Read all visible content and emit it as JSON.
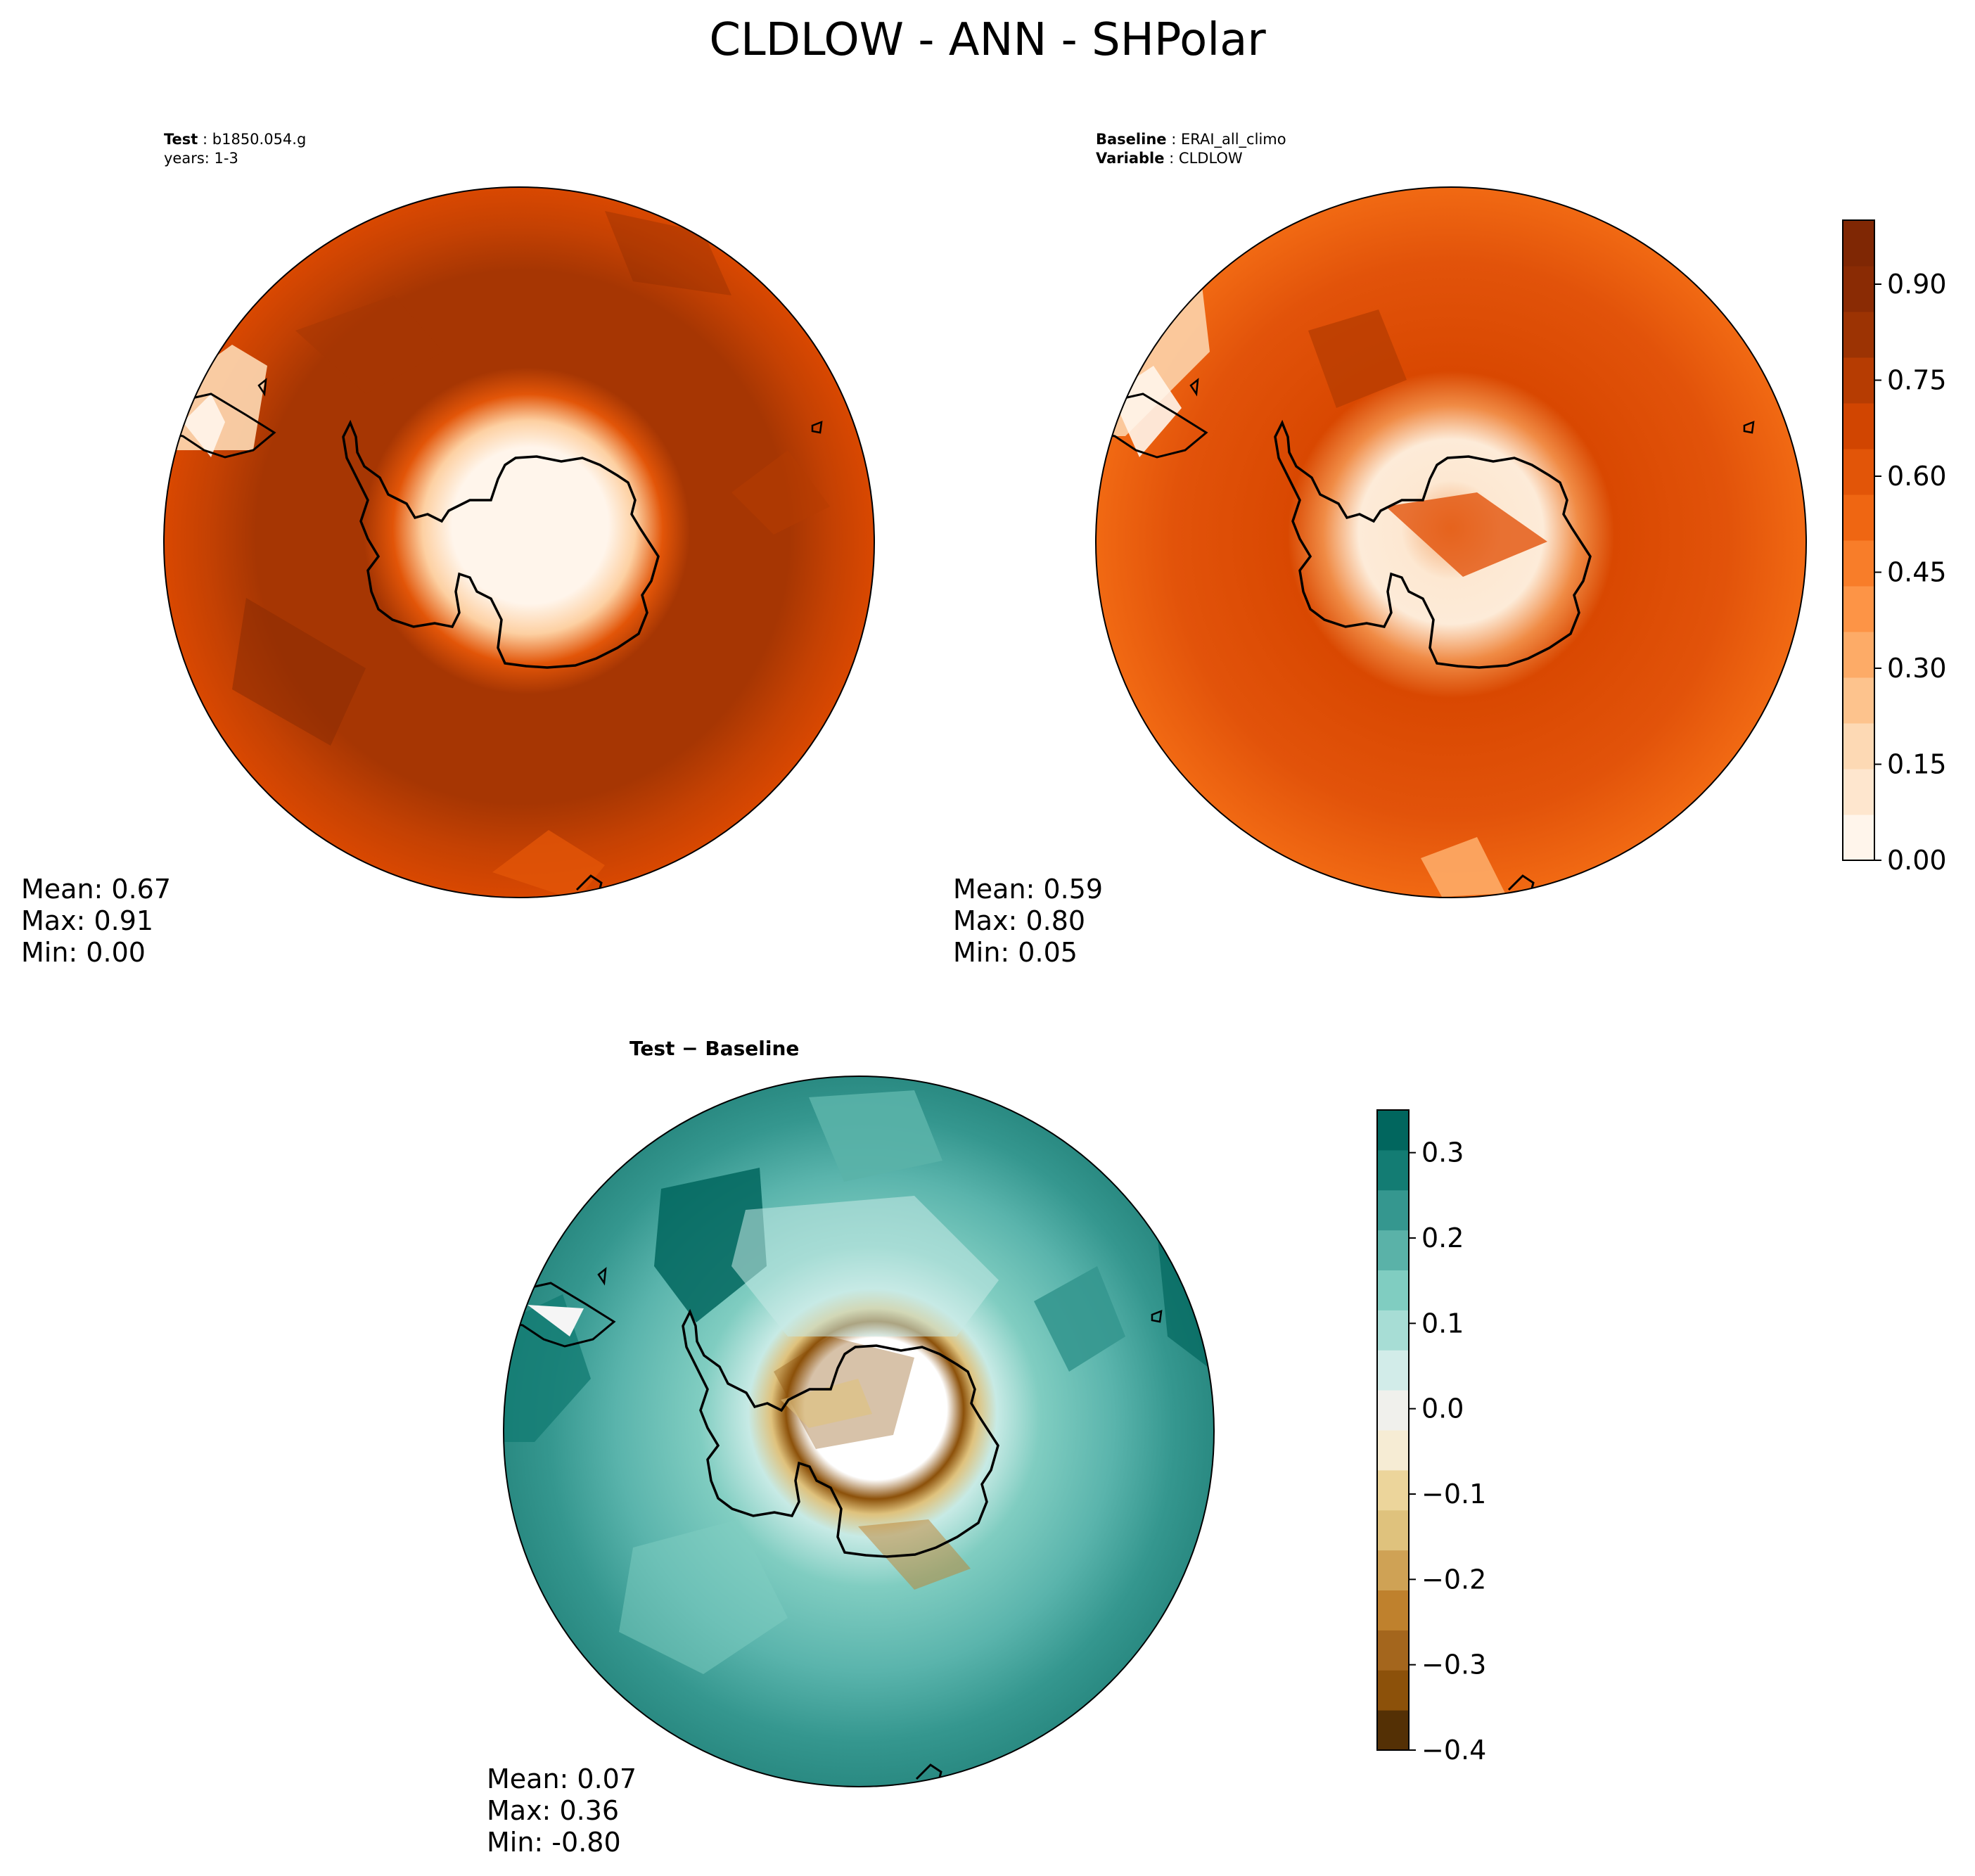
{
  "figure": {
    "title": "CLDLOW - ANN - SHPolar"
  },
  "panels": {
    "test": {
      "header_key": "Test",
      "header_value": "b1850.054.g",
      "header_line2": "years: 1-3",
      "mean": "Mean:  0.67",
      "max": "Max:  0.91",
      "min": "Min:  0.00"
    },
    "baseline": {
      "header_key": "Baseline",
      "header_value": "ERAI_all_climo",
      "header_key2": "Variable",
      "header_value2": "CLDLOW",
      "mean": "Mean:  0.59",
      "max": "Max:  0.80",
      "min": "Min:  0.05"
    },
    "diff": {
      "header": "Test − Baseline",
      "mean": "Mean:  0.07",
      "max": "Max:  0.36",
      "min": "Min: -0.80"
    }
  },
  "colorbars": {
    "oranges": {
      "ticks": [
        "0.00",
        "0.15",
        "0.30",
        "0.45",
        "0.60",
        "0.75",
        "0.90"
      ],
      "colors": [
        "#fff5eb",
        "#fee6ce",
        "#fdd9b4",
        "#fdc38d",
        "#fdab67",
        "#fd9446",
        "#f87d29",
        "#ef6612",
        "#e25508",
        "#d14501",
        "#b63c02",
        "#9c3303",
        "#8a2b04",
        "#7f2704"
      ]
    },
    "diverging": {
      "ticks": [
        "0.3",
        "0.2",
        "0.1",
        "0.0",
        "−0.1",
        "−0.2",
        "−0.3",
        "−0.4"
      ],
      "colors": [
        "#01665e",
        "#137c73",
        "#35978f",
        "#5ab2a8",
        "#80cdc1",
        "#a7ddd5",
        "#d2ece9",
        "#f0f0ec",
        "#f6ecd4",
        "#ecd59b",
        "#dfc27d",
        "#cfa255",
        "#bf812d",
        "#a4661d",
        "#8c510a",
        "#543005"
      ]
    }
  }
}
